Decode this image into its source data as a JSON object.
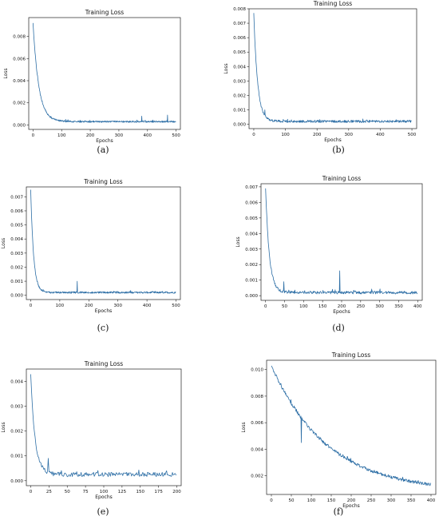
{
  "color": "#2e6fa6",
  "chart_data": [
    {
      "type": "line",
      "panel": "a",
      "caption": "(a)",
      "title": "Training Loss",
      "xlabel": "Epochs",
      "ylabel": "Loss",
      "xlim": [
        -15,
        515
      ],
      "ylim": [
        -0.0004,
        0.0097
      ],
      "xticks": [
        0,
        100,
        200,
        300,
        400,
        500
      ],
      "yticks": [
        0.0,
        0.002,
        0.004,
        0.006,
        0.008
      ],
      "ytick_labels": [
        "0.000",
        "0.002",
        "0.004",
        "0.006",
        "0.008"
      ],
      "n_points": 500,
      "start": 0.0092,
      "end": 0.0003,
      "tau": 20,
      "noise": 7e-05,
      "spikes": [
        [
          380,
          0.0008
        ],
        [
          470,
          0.0009
        ]
      ]
    },
    {
      "type": "line",
      "panel": "b",
      "caption": "(b)",
      "title": "Training Loss",
      "xlabel": "Epochs",
      "ylabel": "Loss",
      "xlim": [
        -15,
        515
      ],
      "ylim": [
        -0.0003,
        0.008
      ],
      "xticks": [
        0,
        100,
        200,
        300,
        400,
        500
      ],
      "yticks": [
        0.0,
        0.001,
        0.002,
        0.003,
        0.004,
        0.005,
        0.006,
        0.007,
        0.008
      ],
      "ytick_labels": [
        "0.000",
        "0.001",
        "0.002",
        "0.003",
        "0.004",
        "0.005",
        "0.006",
        "0.007",
        "0.008"
      ],
      "n_points": 500,
      "start": 0.0077,
      "end": 0.0002,
      "tau": 12,
      "noise": 8e-05,
      "spikes": [
        [
          35,
          0.001
        ]
      ]
    },
    {
      "type": "line",
      "panel": "c",
      "caption": "(c)",
      "title": "Training Loss",
      "xlabel": "Epochs",
      "ylabel": "Loss",
      "xlim": [
        -15,
        515
      ],
      "ylim": [
        -0.0003,
        0.0077
      ],
      "xticks": [
        0,
        100,
        200,
        300,
        400,
        500
      ],
      "yticks": [
        0.0,
        0.001,
        0.002,
        0.003,
        0.004,
        0.005,
        0.006,
        0.007
      ],
      "ytick_labels": [
        "0.000",
        "0.001",
        "0.002",
        "0.003",
        "0.004",
        "0.005",
        "0.006",
        "0.007"
      ],
      "n_points": 500,
      "start": 0.0075,
      "end": 0.0002,
      "tau": 10,
      "noise": 6e-05,
      "spikes": [
        [
          160,
          0.001
        ]
      ]
    },
    {
      "type": "line",
      "panel": "d",
      "caption": "(d)",
      "title": "Training Loss",
      "xlabel": "Epochs",
      "ylabel": "Loss",
      "xlim": [
        -12,
        412
      ],
      "ylim": [
        -0.0003,
        0.0072
      ],
      "xticks": [
        0,
        50,
        100,
        150,
        200,
        250,
        300,
        350,
        400
      ],
      "yticks": [
        0.0,
        0.001,
        0.002,
        0.003,
        0.004,
        0.005,
        0.006,
        0.007
      ],
      "ytick_labels": [
        "0.000",
        "0.001",
        "0.002",
        "0.003",
        "0.004",
        "0.005",
        "0.006",
        "0.007"
      ],
      "n_points": 400,
      "start": 0.0069,
      "end": 0.0002,
      "tau": 10,
      "noise": 9e-05,
      "spikes": [
        [
          48,
          0.0009
        ],
        [
          195,
          0.0016
        ]
      ]
    },
    {
      "type": "line",
      "panel": "e",
      "caption": "(e)",
      "title": "Training Loss",
      "xlabel": "Epochs",
      "ylabel": "Loss",
      "xlim": [
        -6,
        206
      ],
      "ylim": [
        -0.0002,
        0.0045
      ],
      "xticks": [
        0,
        25,
        50,
        75,
        100,
        125,
        150,
        175,
        200
      ],
      "yticks": [
        0.0,
        0.001,
        0.002,
        0.003,
        0.004
      ],
      "ytick_labels": [
        "0.000",
        "0.001",
        "0.002",
        "0.003",
        "0.004"
      ],
      "n_points": 200,
      "start": 0.0043,
      "end": 0.00025,
      "tau": 6,
      "noise": 9e-05,
      "spikes": [
        [
          24,
          0.0009
        ]
      ]
    },
    {
      "type": "line",
      "panel": "f",
      "caption": "(f)",
      "title": "Training Loss",
      "xlabel": "Epochs",
      "ylabel": "Loss",
      "xlim": [
        -12,
        412
      ],
      "ylim": [
        0.0006,
        0.0107
      ],
      "xticks": [
        0,
        50,
        100,
        150,
        200,
        250,
        300,
        350,
        400
      ],
      "yticks": [
        0.002,
        0.004,
        0.006,
        0.008,
        0.01
      ],
      "ytick_labels": [
        "0.002",
        "0.004",
        "0.006",
        "0.008",
        "0.010"
      ],
      "n_points": 400,
      "start": 0.0103,
      "end": 0.0008,
      "tau": 140,
      "noise": 0.00012,
      "spikes": [
        [
          75,
          0.0045
        ]
      ]
    }
  ]
}
